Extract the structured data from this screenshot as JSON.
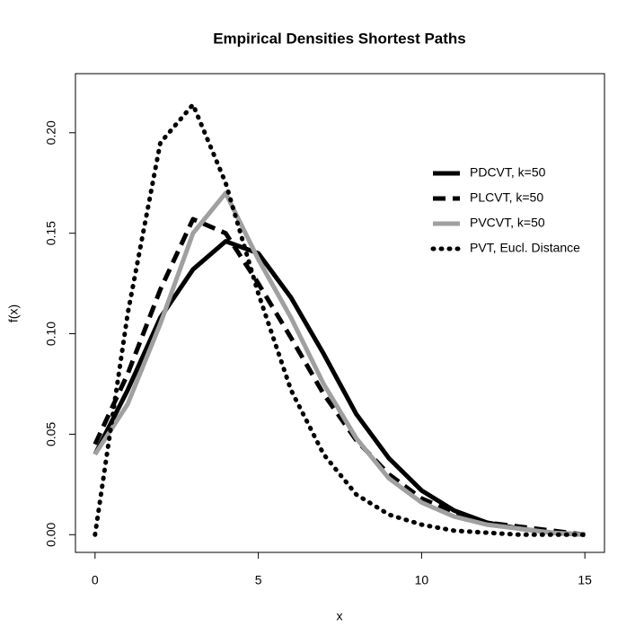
{
  "chart_data": {
    "type": "line",
    "title": "Empirical Densities Shortest Paths",
    "x_label": "x",
    "y_label": "f(x)",
    "x": [
      0,
      1,
      2,
      3,
      4,
      5,
      6,
      7,
      8,
      9,
      10,
      11,
      12,
      13,
      14,
      15
    ],
    "series": [
      {
        "name": "PDCVT, k=50",
        "color": "#000000",
        "dash": "solid",
        "values": [
          0.04,
          0.072,
          0.108,
          0.132,
          0.146,
          0.14,
          0.118,
          0.09,
          0.06,
          0.038,
          0.022,
          0.012,
          0.006,
          0.003,
          0.001,
          0.0
        ]
      },
      {
        "name": "PLCVT, k=50",
        "color": "#000000",
        "dash": "dashed",
        "values": [
          0.045,
          0.08,
          0.122,
          0.157,
          0.15,
          0.125,
          0.098,
          0.07,
          0.047,
          0.03,
          0.018,
          0.011,
          0.006,
          0.004,
          0.002,
          0.0
        ]
      },
      {
        "name": "PVCVT, k=50",
        "color": "#a0a0a0",
        "dash": "solid",
        "values": [
          0.04,
          0.065,
          0.105,
          0.15,
          0.17,
          0.137,
          0.108,
          0.075,
          0.048,
          0.028,
          0.016,
          0.009,
          0.005,
          0.003,
          0.001,
          0.0
        ]
      },
      {
        "name": "PVT, Eucl. Distance",
        "color": "#000000",
        "dash": "dotted",
        "values": [
          0.0,
          0.11,
          0.195,
          0.214,
          0.175,
          0.12,
          0.072,
          0.04,
          0.02,
          0.01,
          0.005,
          0.002,
          0.001,
          0.0,
          0.0,
          0.0
        ]
      }
    ],
    "xlim": [
      -0.6,
      15.6
    ],
    "xticks": [
      0,
      5,
      10,
      15
    ],
    "ylim": [
      -0.0088,
      0.2294
    ],
    "yticks": [
      {
        "value": 0,
        "label": "0.00"
      },
      {
        "value": 0.05,
        "label": "0.05"
      },
      {
        "value": 0.1,
        "label": "0.10"
      },
      {
        "value": 0.15,
        "label": "0.15"
      },
      {
        "value": 0.2,
        "label": "0.20"
      }
    ],
    "legend": "topright"
  }
}
